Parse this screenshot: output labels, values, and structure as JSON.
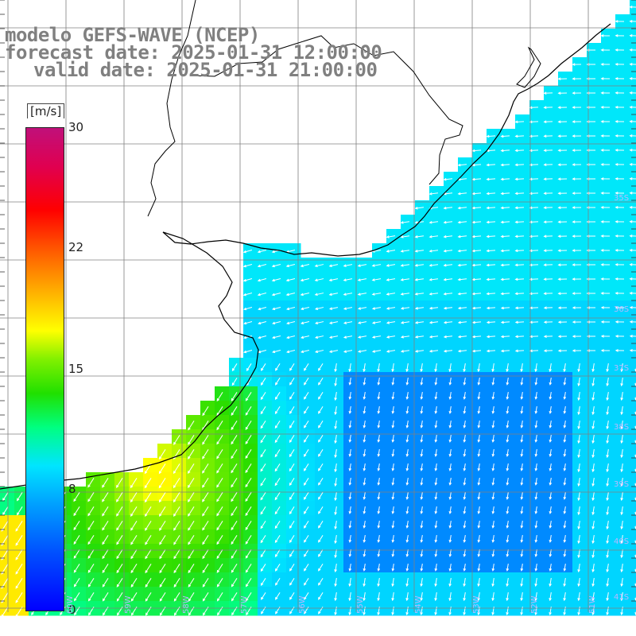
{
  "title": {
    "model": "modelo GEFS-WAVE (NCEP)",
    "forecast": "forecast date: 2025-01-31 12:00:00",
    "valid": "valid date: 2025-01-31 21:00:00"
  },
  "colorbar": {
    "unit": "[m/s]",
    "ticks": [
      "30",
      "22",
      "15",
      "8",
      "0"
    ],
    "tick_values": [
      30,
      22,
      15,
      8,
      0
    ],
    "range": [
      0,
      30
    ]
  },
  "lat_labels": [
    "35S",
    "36S",
    "37S",
    "38S",
    "39S",
    "40S",
    "41S"
  ],
  "lon_labels": [
    "60W",
    "59W",
    "58W",
    "57W",
    "56W",
    "55W",
    "54W",
    "53W",
    "52W",
    "51W"
  ],
  "colors": {
    "land": "#ffffff",
    "grid": "#808080",
    "coast": "#000000",
    "arrow": "#ffffff",
    "title": "#808080"
  },
  "map_data": {
    "variable": "wind speed and direction",
    "units": "m/s",
    "value_range": [
      0,
      30
    ]
  }
}
